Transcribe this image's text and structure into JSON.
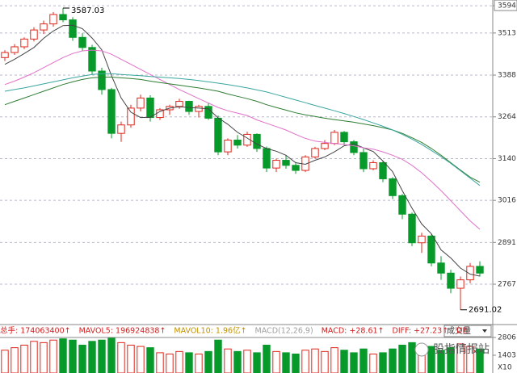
{
  "chart_data": {
    "type": "candlestick",
    "open": [
      3440,
      3455,
      3472,
      3495,
      3522,
      3540,
      3568,
      3552,
      3500,
      3470,
      3400,
      3345,
      3215,
      3240,
      3290,
      3320,
      3262,
      3285,
      3295,
      3310,
      3280,
      3295,
      3260,
      3160,
      3195,
      3180,
      3212,
      3170,
      3112,
      3135,
      3120,
      3105,
      3145,
      3170,
      3185,
      3218,
      3190,
      3158,
      3110,
      3128,
      3080,
      3030,
      2975,
      2890,
      2910,
      2830,
      2800,
      2755,
      2780,
      2820
    ],
    "high": [
      3462,
      3480,
      3500,
      3530,
      3550,
      3575,
      3587.03,
      3560,
      3512,
      3478,
      3410,
      3350,
      3250,
      3300,
      3330,
      3328,
      3290,
      3300,
      3318,
      3312,
      3300,
      3305,
      3268,
      3200,
      3210,
      3220,
      3215,
      3176,
      3140,
      3150,
      3130,
      3150,
      3175,
      3195,
      3225,
      3222,
      3195,
      3170,
      3135,
      3132,
      3085,
      3035,
      2980,
      2920,
      2915,
      2850,
      2810,
      2790,
      2830,
      2835
    ],
    "low": [
      3430,
      3448,
      3465,
      3488,
      3510,
      3532,
      3545,
      3490,
      3460,
      3390,
      3330,
      3200,
      3190,
      3232,
      3280,
      3250,
      3255,
      3270,
      3288,
      3270,
      3262,
      3255,
      3150,
      3150,
      3170,
      3175,
      3160,
      3100,
      3100,
      3110,
      3095,
      3100,
      3140,
      3165,
      3180,
      3180,
      3150,
      3100,
      3105,
      3070,
      3020,
      2960,
      2880,
      2860,
      2820,
      2780,
      2740,
      2691.02,
      2770,
      2790
    ],
    "close": [
      3455,
      3472,
      3495,
      3522,
      3540,
      3568,
      3552,
      3500,
      3470,
      3400,
      3345,
      3215,
      3240,
      3290,
      3320,
      3262,
      3285,
      3295,
      3310,
      3280,
      3295,
      3260,
      3160,
      3195,
      3180,
      3212,
      3170,
      3112,
      3135,
      3120,
      3105,
      3145,
      3170,
      3185,
      3218,
      3190,
      3158,
      3110,
      3128,
      3080,
      3030,
      2975,
      2890,
      2910,
      2830,
      2800,
      2755,
      2780,
      2820,
      2800
    ],
    "lines": [
      {
        "color": "#444444",
        "values": [
          3420,
          3435,
          3452,
          3470,
          3497,
          3519,
          3535,
          3536,
          3526,
          3498,
          3463,
          3386,
          3320,
          3278,
          3262,
          3263,
          3280,
          3290,
          3294,
          3292,
          3290,
          3288,
          3261,
          3242,
          3218,
          3201,
          3183,
          3170,
          3162,
          3150,
          3128,
          3123,
          3135,
          3145,
          3160,
          3178,
          3184,
          3172,
          3161,
          3133,
          3101,
          3045,
          2993,
          2946,
          2917,
          2869,
          2845,
          2815,
          2797,
          2791
        ]
      },
      {
        "color": "#e070c8",
        "values": [
          3360,
          3370,
          3382,
          3395,
          3410,
          3425,
          3440,
          3452,
          3460,
          3462,
          3460,
          3450,
          3435,
          3420,
          3405,
          3390,
          3375,
          3360,
          3345,
          3332,
          3318,
          3305,
          3292,
          3282,
          3275,
          3268,
          3255,
          3245,
          3235,
          3225,
          3212,
          3200,
          3192,
          3188,
          3185,
          3182,
          3178,
          3172,
          3168,
          3160,
          3150,
          3138,
          3120,
          3098,
          3072,
          3045,
          3015,
          2985,
          2955,
          2930
        ]
      },
      {
        "color": "#2e7d32",
        "values": [
          3300,
          3310,
          3320,
          3330,
          3340,
          3350,
          3360,
          3368,
          3375,
          3380,
          3382,
          3382,
          3380,
          3378,
          3375,
          3370,
          3366,
          3362,
          3358,
          3354,
          3350,
          3345,
          3340,
          3332,
          3325,
          3318,
          3310,
          3300,
          3292,
          3284,
          3276,
          3270,
          3265,
          3260,
          3256,
          3252,
          3248,
          3243,
          3238,
          3232,
          3225,
          3215,
          3202,
          3188,
          3170,
          3150,
          3128,
          3106,
          3085,
          3070
        ]
      },
      {
        "color": "#3aa6a0",
        "values": [
          3340,
          3345,
          3350,
          3356,
          3362,
          3368,
          3374,
          3380,
          3385,
          3390,
          3392,
          3392,
          3390,
          3388,
          3386,
          3384,
          3382,
          3380,
          3378,
          3375,
          3372,
          3368,
          3364,
          3360,
          3355,
          3350,
          3344,
          3338,
          3330,
          3322,
          3314,
          3306,
          3298,
          3290,
          3282,
          3274,
          3265,
          3256,
          3246,
          3236,
          3225,
          3212,
          3198,
          3182,
          3164,
          3146,
          3126,
          3104,
          3082,
          3060
        ]
      }
    ],
    "ylim": [
      2652,
      3611
    ],
    "yticks": [
      2767,
      2891,
      3016,
      3140,
      3264,
      3388,
      3513,
      3594
    ],
    "grid": true,
    "up_color": "#e0261b",
    "down_color": "#079a2a",
    "indicators": [
      {
        "text": "总手: 174063400↑",
        "color": "#d02020"
      },
      {
        "text": "MAVOL5: 196924838↑",
        "color": "#d02020"
      },
      {
        "text": "MAVOL10: 1.96亿↑",
        "color": "#c09000"
      },
      {
        "text": "MACD(12,26,9)",
        "color": "#a0a0a0"
      },
      {
        "text": "MACD: +28.61↑",
        "color": "#d02020"
      },
      {
        "text": "DIFF: +27.23↑",
        "color": "#d02020"
      },
      {
        "text": "DE.",
        "color": "#d02020"
      }
    ],
    "selector": "成交量",
    "volume": {
      "values": [
        1800,
        2000,
        2200,
        2500,
        2400,
        2600,
        2700,
        2600,
        2200,
        2500,
        2600,
        2750,
        2400,
        2200,
        2100,
        2000,
        1600,
        1500,
        1700,
        1600,
        1500,
        1700,
        2600,
        1900,
        1700,
        1800,
        1600,
        2200,
        1700,
        1600,
        1500,
        1800,
        1900,
        1700,
        2000,
        1800,
        1600,
        1900,
        1500,
        1600,
        1900,
        2200,
        2400,
        2000,
        2100,
        1800,
        2000,
        2300,
        2100,
        1900
      ],
      "ylim": [
        0,
        2806
      ],
      "yticks": [
        1403,
        2806
      ],
      "unit": "X10"
    },
    "watermark": "股指情报站"
  }
}
